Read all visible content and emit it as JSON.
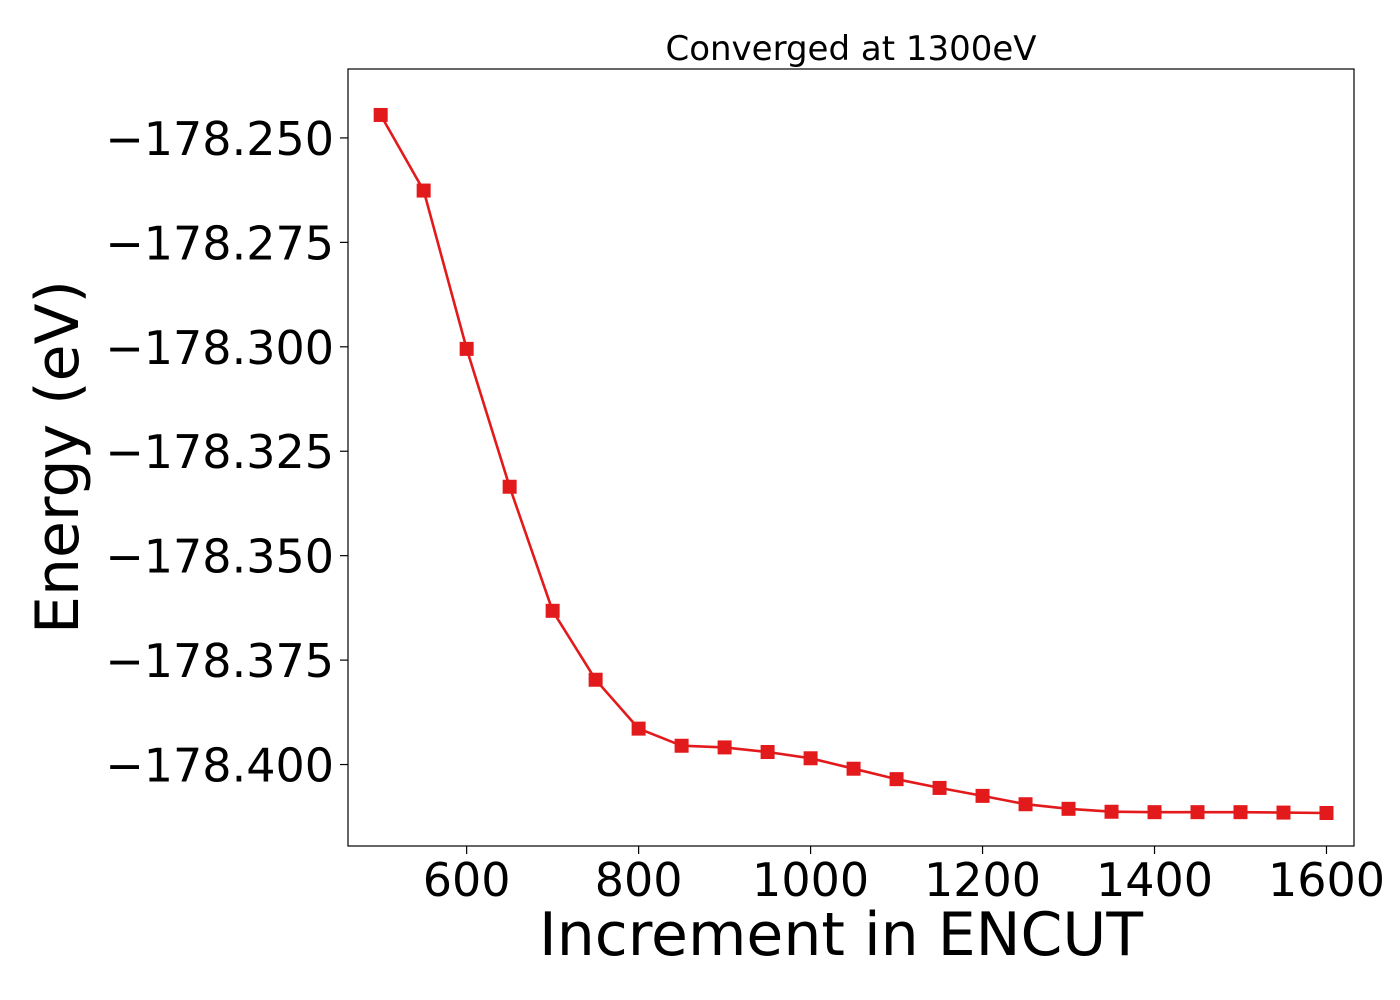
{
  "chart_data": {
    "type": "line",
    "title": "Converged at 1300eV",
    "xlabel": "Increment in ENCUT",
    "ylabel": "Energy (eV)",
    "xlim": [
      462,
      1632
    ],
    "ylim": [
      -178.4195,
      -178.2335
    ],
    "xticks": [
      600,
      800,
      1000,
      1200,
      1400,
      1600
    ],
    "xtick_labels": [
      "600",
      "800",
      "1000",
      "1200",
      "1400",
      "1600"
    ],
    "yticks": [
      -178.25,
      -178.275,
      -178.3,
      -178.325,
      -178.35,
      -178.375,
      -178.4
    ],
    "ytick_labels": [
      "−178.250",
      "−178.275",
      "−178.300",
      "−178.325",
      "−178.350",
      "−178.375",
      "−178.400"
    ],
    "grid": false,
    "series": [
      {
        "color": "#e31a1c",
        "marker": "square",
        "x": [
          500,
          550,
          600,
          650,
          700,
          750,
          800,
          850,
          900,
          950,
          1000,
          1050,
          1100,
          1150,
          1200,
          1250,
          1300,
          1350,
          1400,
          1450,
          1500,
          1550,
          1600
        ],
        "y": [
          -178.2445,
          -178.2626,
          -178.3005,
          -178.3335,
          -178.3632,
          -178.3797,
          -178.3914,
          -178.3955,
          -178.3959,
          -178.397,
          -178.3985,
          -178.401,
          -178.4035,
          -178.4056,
          -178.4075,
          -178.4095,
          -178.4106,
          -178.4113,
          -178.4114,
          -178.4114,
          -178.4114,
          -178.4115,
          -178.4116
        ]
      }
    ]
  }
}
